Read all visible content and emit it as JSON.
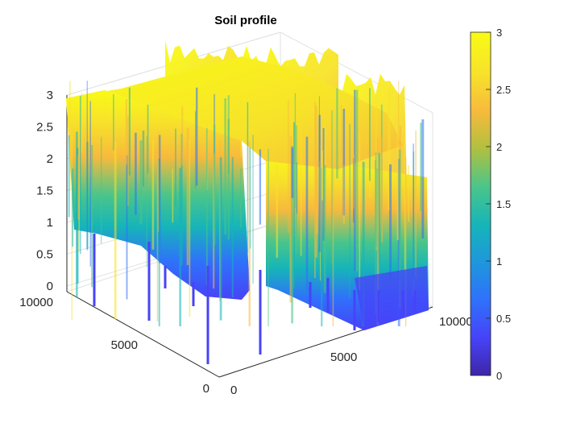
{
  "chart_data": {
    "type": "surface",
    "title": "Soil profile",
    "xlabel": "",
    "ylabel": "",
    "zlabel": "",
    "x_ticks": [
      "0",
      "5000",
      "10000"
    ],
    "y_ticks": [
      "0",
      "5000",
      "10000"
    ],
    "z_ticks": [
      "0",
      "0.5",
      "1",
      "1.5",
      "2",
      "2.5",
      "3"
    ],
    "xlim": [
      0,
      10000
    ],
    "ylim": [
      0,
      10000
    ],
    "zlim": [
      0,
      3
    ],
    "grid": true,
    "colormap": "parula",
    "colormap_stops": [
      "#3e26a8",
      "#4743f8",
      "#2f71fb",
      "#1e97dc",
      "#16b5b8",
      "#4bc58a",
      "#b0c040",
      "#f7ba3c",
      "#f7e22a",
      "#f9fb15"
    ],
    "colorbar": {
      "location": "right",
      "limits": [
        0,
        3
      ],
      "ticks": [
        "0",
        "0.5",
        "1",
        "1.5",
        "2",
        "2.5",
        "3"
      ]
    },
    "surface_description_values": {
      "top_elevation": 3,
      "bottom_elevation": 0,
      "typical_lower_edge_range": [
        0.5,
        1.2
      ],
      "deep_spikes_min": 0
    }
  }
}
